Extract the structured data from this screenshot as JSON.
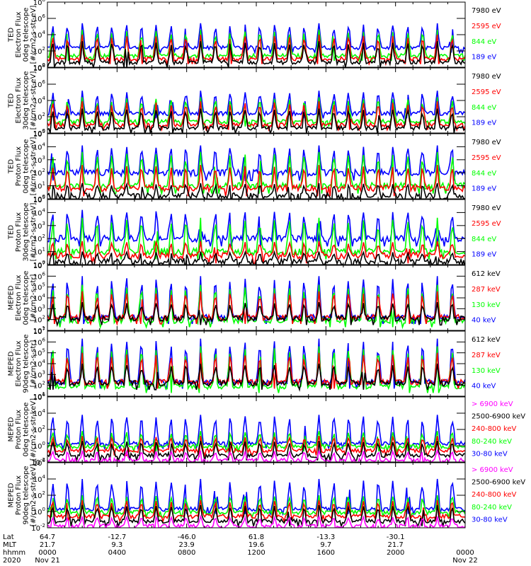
{
  "chart_data": [
    {
      "type": "line",
      "instrument": "TED",
      "ylabel": [
        "TED",
        "Electron Flux",
        "0deg telescope",
        "[#/cm2-s-str-eV]"
      ],
      "yscale": "log",
      "ylim_exp": [
        0,
        8
      ],
      "ytick_labels": [
        {
          "base": "10",
          "exp": "0"
        },
        {
          "base": "10",
          "exp": "2"
        },
        {
          "base": "10",
          "exp": "4"
        },
        {
          "base": "10",
          "exp": "6"
        },
        {
          "base": "10",
          "exp": "8"
        }
      ],
      "ytick_exps": [
        0,
        2,
        4,
        6,
        8
      ],
      "series": [
        {
          "name": "7980 eV",
          "color": "#000000",
          "base": 0.6,
          "peak": 3.2
        },
        {
          "name": "2595 eV",
          "color": "#ff0000",
          "base": 1.0,
          "peak": 4.0
        },
        {
          "name": "844 eV",
          "color": "#00ff00",
          "base": 1.4,
          "peak": 4.6
        },
        {
          "name": "189 eV",
          "color": "#0000ff",
          "base": 2.4,
          "peak": 5.4
        }
      ]
    },
    {
      "type": "line",
      "instrument": "TED",
      "ylabel": [
        "TED",
        "Electron Flux",
        "30deg telescope",
        "[#/cm2-s-str-eV]"
      ],
      "yscale": "log",
      "ylim_exp": [
        0,
        8
      ],
      "ytick_labels": [
        {
          "base": "10",
          "exp": "0"
        },
        {
          "base": "10",
          "exp": "2"
        },
        {
          "base": "10",
          "exp": "4"
        },
        {
          "base": "10",
          "exp": "6"
        },
        {
          "base": "10",
          "exp": "8"
        }
      ],
      "ytick_exps": [
        0,
        2,
        4,
        6,
        8
      ],
      "series": [
        {
          "name": "7980 eV",
          "color": "#000000",
          "base": 0.6,
          "peak": 3.0
        },
        {
          "name": "2595 eV",
          "color": "#ff0000",
          "base": 1.0,
          "peak": 3.9
        },
        {
          "name": "844 eV",
          "color": "#00ff00",
          "base": 1.4,
          "peak": 4.4
        },
        {
          "name": "189 eV",
          "color": "#0000ff",
          "base": 2.4,
          "peak": 5.2
        }
      ]
    },
    {
      "type": "line",
      "instrument": "TED",
      "ylabel": [
        "TED",
        "Proton Flux",
        "0deg telescope",
        "[#/cm2-s-str-eV]"
      ],
      "yscale": "log",
      "ylim_exp": [
        0,
        5
      ],
      "ytick_labels": [
        {
          "base": "10",
          "exp": "0"
        },
        {
          "base": "10",
          "exp": "1"
        },
        {
          "base": "10",
          "exp": "2"
        },
        {
          "base": "10",
          "exp": "3"
        },
        {
          "base": "10",
          "exp": "4"
        },
        {
          "base": "10",
          "exp": "5"
        }
      ],
      "ytick_exps": [
        0,
        1,
        2,
        3,
        4,
        5
      ],
      "series": [
        {
          "name": "7980 eV",
          "color": "#000000",
          "base": 0.2,
          "peak": 1.2
        },
        {
          "name": "2595 eV",
          "color": "#ff0000",
          "base": 0.8,
          "peak": 2.6
        },
        {
          "name": "844 eV",
          "color": "#00ff00",
          "base": 1.0,
          "peak": 3.6
        },
        {
          "name": "189 eV",
          "color": "#0000ff",
          "base": 2.0,
          "peak": 4.1
        }
      ]
    },
    {
      "type": "line",
      "instrument": "TED",
      "ylabel": [
        "TED",
        "Proton Flux",
        "30deg telescope",
        "[#/cm2-s-str-eV]"
      ],
      "yscale": "log",
      "ylim_exp": [
        0,
        5
      ],
      "ytick_labels": [
        {
          "base": "10",
          "exp": "0"
        },
        {
          "base": "10",
          "exp": "1"
        },
        {
          "base": "10",
          "exp": "2"
        },
        {
          "base": "10",
          "exp": "3"
        },
        {
          "base": "10",
          "exp": "4"
        },
        {
          "base": "10",
          "exp": "5"
        }
      ],
      "ytick_exps": [
        0,
        1,
        2,
        3,
        4,
        5
      ],
      "series": [
        {
          "name": "7980 eV",
          "color": "#000000",
          "base": 0.2,
          "peak": 1.0
        },
        {
          "name": "2595 eV",
          "color": "#ff0000",
          "base": 0.7,
          "peak": 1.8
        },
        {
          "name": "844 eV",
          "color": "#00ff00",
          "base": 1.0,
          "peak": 3.6
        },
        {
          "name": "189 eV",
          "color": "#0000ff",
          "base": 2.0,
          "peak": 4.2
        }
      ]
    },
    {
      "type": "line",
      "instrument": "MEPED",
      "ylabel": [
        "MEPED",
        "Electron Flux",
        "0deg telescope",
        "[#/cm2-s-str]"
      ],
      "yscale": "log",
      "ylim_exp": [
        1,
        7
      ],
      "ytick_labels": [
        {
          "base": "10",
          "exp": "1"
        },
        {
          "base": "10",
          "exp": "2"
        },
        {
          "base": "10",
          "exp": "3"
        },
        {
          "base": "10",
          "exp": "4"
        },
        {
          "base": "10",
          "exp": "5"
        },
        {
          "base": "10",
          "exp": "6"
        },
        {
          "base": "10",
          "exp": "7"
        }
      ],
      "ytick_exps": [
        1,
        2,
        3,
        4,
        5,
        6,
        7
      ],
      "series": [
        {
          "name": "612 keV",
          "color": "#000000",
          "base": 2.1,
          "peak": 3.6
        },
        {
          "name": "287 keV",
          "color": "#ff0000",
          "base": 2.2,
          "peak": 4.6
        },
        {
          "name": "130 keV",
          "color": "#00ff00",
          "base": 1.9,
          "peak": 5.2
        },
        {
          "name": "40 keV",
          "color": "#0000ff",
          "base": 2.2,
          "peak": 6.0
        }
      ]
    },
    {
      "type": "line",
      "instrument": "MEPED",
      "ylabel": [
        "MEPED",
        "Electron Flux",
        "90deg telescope",
        "[#/cm2-s-str]"
      ],
      "yscale": "log",
      "ylim_exp": [
        1,
        7
      ],
      "ytick_labels": [
        {
          "base": "10",
          "exp": "1"
        },
        {
          "base": "10",
          "exp": "2"
        },
        {
          "base": "10",
          "exp": "3"
        },
        {
          "base": "10",
          "exp": "4"
        },
        {
          "base": "10",
          "exp": "5"
        },
        {
          "base": "10",
          "exp": "6"
        },
        {
          "base": "10",
          "exp": "7"
        }
      ],
      "ytick_exps": [
        1,
        2,
        3,
        4,
        5,
        6,
        7
      ],
      "series": [
        {
          "name": "612 keV",
          "color": "#000000",
          "base": 2.2,
          "peak": 4.0
        },
        {
          "name": "287 keV",
          "color": "#ff0000",
          "base": 2.3,
          "peak": 5.0
        },
        {
          "name": "130 keV",
          "color": "#00ff00",
          "base": 1.9,
          "peak": 5.6
        },
        {
          "name": "40 keV",
          "color": "#0000ff",
          "base": 2.3,
          "peak": 6.3
        }
      ]
    },
    {
      "type": "line",
      "instrument": "MEPED",
      "ylabel": [
        "MEPED",
        "Proton Flux",
        "0deg telescope",
        "[#/cm2-s-str-keV]"
      ],
      "yscale": "log",
      "ylim_exp": [
        -2,
        6
      ],
      "ytick_labels": [
        {
          "base": "10",
          "exp": "-2"
        },
        {
          "base": "10",
          "exp": "0"
        },
        {
          "base": "10",
          "exp": "2"
        },
        {
          "base": "10",
          "exp": "4"
        },
        {
          "base": "10",
          "exp": "6"
        }
      ],
      "ytick_exps": [
        -2,
        0,
        2,
        4,
        6
      ],
      "series": [
        {
          "name": "> 6900 keV",
          "color": "#ff00ff",
          "base": -1.8,
          "peak": -0.6
        },
        {
          "name": "2500-6900 keV",
          "color": "#000000",
          "base": -1.2,
          "peak": 0.6
        },
        {
          "name": "240-800 keV",
          "color": "#ff0000",
          "base": -0.6,
          "peak": 1.2
        },
        {
          "name": "80-240 keV",
          "color": "#00ff00",
          "base": -0.1,
          "peak": 1.8
        },
        {
          "name": "30-80 keV",
          "color": "#0000ff",
          "base": 0.3,
          "peak": 3.8
        }
      ]
    },
    {
      "type": "line",
      "instrument": "MEPED",
      "ylabel": [
        "MEPED",
        "Proton Flux",
        "90deg telescope",
        "[#/cm2-s-str-keV]"
      ],
      "yscale": "log",
      "ylim_exp": [
        -2,
        6
      ],
      "ytick_labels": [
        {
          "base": "10",
          "exp": "-2"
        },
        {
          "base": "10",
          "exp": "0"
        },
        {
          "base": "10",
          "exp": "2"
        },
        {
          "base": "10",
          "exp": "4"
        },
        {
          "base": "10",
          "exp": "6"
        }
      ],
      "ytick_exps": [
        -2,
        0,
        2,
        4,
        6
      ],
      "series": [
        {
          "name": "> 6900 keV",
          "color": "#ff00ff",
          "base": -1.8,
          "peak": -0.6
        },
        {
          "name": "2500-6900 keV",
          "color": "#000000",
          "base": -1.2,
          "peak": 0.8
        },
        {
          "name": "240-800 keV",
          "color": "#ff0000",
          "base": -0.6,
          "peak": 1.4
        },
        {
          "name": "80-240 keV",
          "color": "#00ff00",
          "base": -0.1,
          "peak": 2.0
        },
        {
          "name": "30-80 keV",
          "color": "#0000ff",
          "base": 0.3,
          "peak": 4.0
        }
      ]
    }
  ],
  "x_axis": {
    "hours_range": [
      0,
      24
    ],
    "row_labels": [
      "Lat",
      "MLT",
      "hhmm",
      "2020"
    ],
    "ticks": [
      {
        "hour": 0,
        "lat": "64.7",
        "mlt": "21.7",
        "hhmm": "0000",
        "date": "Nov 21"
      },
      {
        "hour": 4,
        "lat": "-12.7",
        "mlt": "9.3",
        "hhmm": "0400",
        "date": ""
      },
      {
        "hour": 8,
        "lat": "-46.0",
        "mlt": "23.9",
        "hhmm": "0800",
        "date": ""
      },
      {
        "hour": 12,
        "lat": "61.8",
        "mlt": "19.6",
        "hhmm": "1200",
        "date": ""
      },
      {
        "hour": 16,
        "lat": "-13.3",
        "mlt": "9.7",
        "hhmm": "1600",
        "date": ""
      },
      {
        "hour": 20,
        "lat": "-30.1",
        "mlt": "21.7",
        "hhmm": "2000",
        "date": ""
      },
      {
        "hour": 24,
        "lat": "",
        "mlt": "",
        "hhmm": "0000",
        "date": "Nov 22"
      }
    ]
  }
}
